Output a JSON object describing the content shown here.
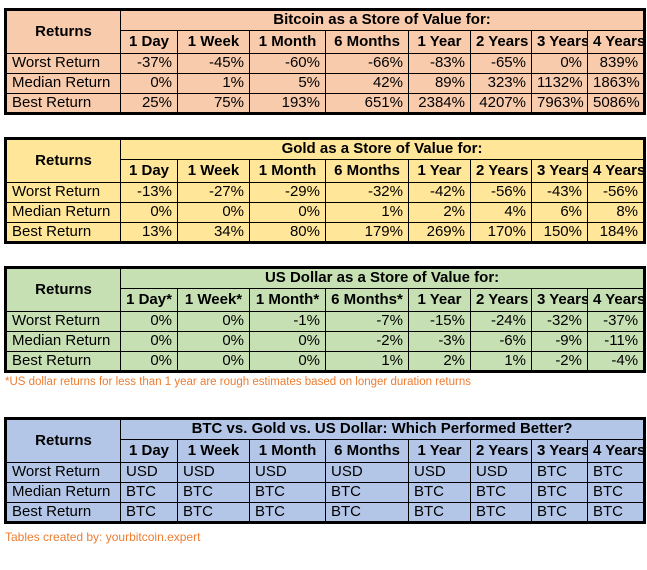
{
  "colors": {
    "bitcoin_fill": "#F8CBAD",
    "gold_fill": "#FFE699",
    "usd_fill": "#C6E0B4",
    "compare_fill": "#B4C6E7",
    "border": "#000000",
    "note_text": "#ED7D31"
  },
  "footnote": "*US dollar returns for less than 1 year are rough estimates based on longer duration returns",
  "credit": "Tables created by: yourbitcoin.expert",
  "chart_data": [
    {
      "type": "table",
      "title": "Bitcoin as a Store of Value for:",
      "corner_label": "Returns",
      "fill": "#F8CBAD",
      "value_align": "right",
      "columns": [
        "1 Day",
        "1 Week",
        "1 Month",
        "6 Months",
        "1 Year",
        "2 Years",
        "3 Years",
        "4 Years"
      ],
      "rows": [
        {
          "label": "Worst Return",
          "values": [
            "-37%",
            "-45%",
            "-60%",
            "-66%",
            "-83%",
            "-65%",
            "0%",
            "839%"
          ]
        },
        {
          "label": "Median Return",
          "values": [
            "0%",
            "1%",
            "5%",
            "42%",
            "89%",
            "323%",
            "1132%",
            "1863%"
          ]
        },
        {
          "label": "Best Return",
          "values": [
            "25%",
            "75%",
            "193%",
            "651%",
            "2384%",
            "4207%",
            "7963%",
            "5086%"
          ]
        }
      ]
    },
    {
      "type": "table",
      "title": "Gold as a Store of Value for:",
      "corner_label": "Returns",
      "fill": "#FFE699",
      "value_align": "right",
      "columns": [
        "1 Day",
        "1 Week",
        "1 Month",
        "6 Months",
        "1 Year",
        "2 Years",
        "3 Years",
        "4 Years"
      ],
      "rows": [
        {
          "label": "Worst Return",
          "values": [
            "-13%",
            "-27%",
            "-29%",
            "-32%",
            "-42%",
            "-56%",
            "-43%",
            "-56%"
          ]
        },
        {
          "label": "Median Return",
          "values": [
            "0%",
            "0%",
            "0%",
            "1%",
            "2%",
            "4%",
            "6%",
            "8%"
          ]
        },
        {
          "label": "Best Return",
          "values": [
            "13%",
            "34%",
            "80%",
            "179%",
            "269%",
            "170%",
            "150%",
            "184%"
          ]
        }
      ]
    },
    {
      "type": "table",
      "title": "US Dollar as a Store of Value for:",
      "corner_label": "Returns",
      "fill": "#C6E0B4",
      "value_align": "right",
      "columns": [
        "1 Day*",
        "1 Week*",
        "1 Month*",
        "6 Months*",
        "1 Year",
        "2 Years",
        "3 Years",
        "4 Years"
      ],
      "rows": [
        {
          "label": "Worst Return",
          "values": [
            "0%",
            "0%",
            "-1%",
            "-7%",
            "-15%",
            "-24%",
            "-32%",
            "-37%"
          ]
        },
        {
          "label": "Median Return",
          "values": [
            "0%",
            "0%",
            "0%",
            "-2%",
            "-3%",
            "-6%",
            "-9%",
            "-11%"
          ]
        },
        {
          "label": "Best Return",
          "values": [
            "0%",
            "0%",
            "0%",
            "1%",
            "2%",
            "1%",
            "-2%",
            "-4%"
          ]
        }
      ]
    },
    {
      "type": "table",
      "title": "BTC vs. Gold vs. US Dollar: Which Performed Better?",
      "corner_label": "Returns",
      "fill": "#B4C6E7",
      "value_align": "left",
      "columns": [
        "1 Day",
        "1 Week",
        "1 Month",
        "6 Months",
        "1 Year",
        "2 Years",
        "3 Years",
        "4 Years"
      ],
      "rows": [
        {
          "label": "Worst Return",
          "values": [
            "USD",
            "USD",
            "USD",
            "USD",
            "USD",
            "USD",
            "BTC",
            "BTC"
          ]
        },
        {
          "label": "Median Return",
          "values": [
            "BTC",
            "BTC",
            "BTC",
            "BTC",
            "BTC",
            "BTC",
            "BTC",
            "BTC"
          ]
        },
        {
          "label": "Best Return",
          "values": [
            "BTC",
            "BTC",
            "BTC",
            "BTC",
            "BTC",
            "BTC",
            "BTC",
            "BTC"
          ]
        }
      ]
    }
  ]
}
